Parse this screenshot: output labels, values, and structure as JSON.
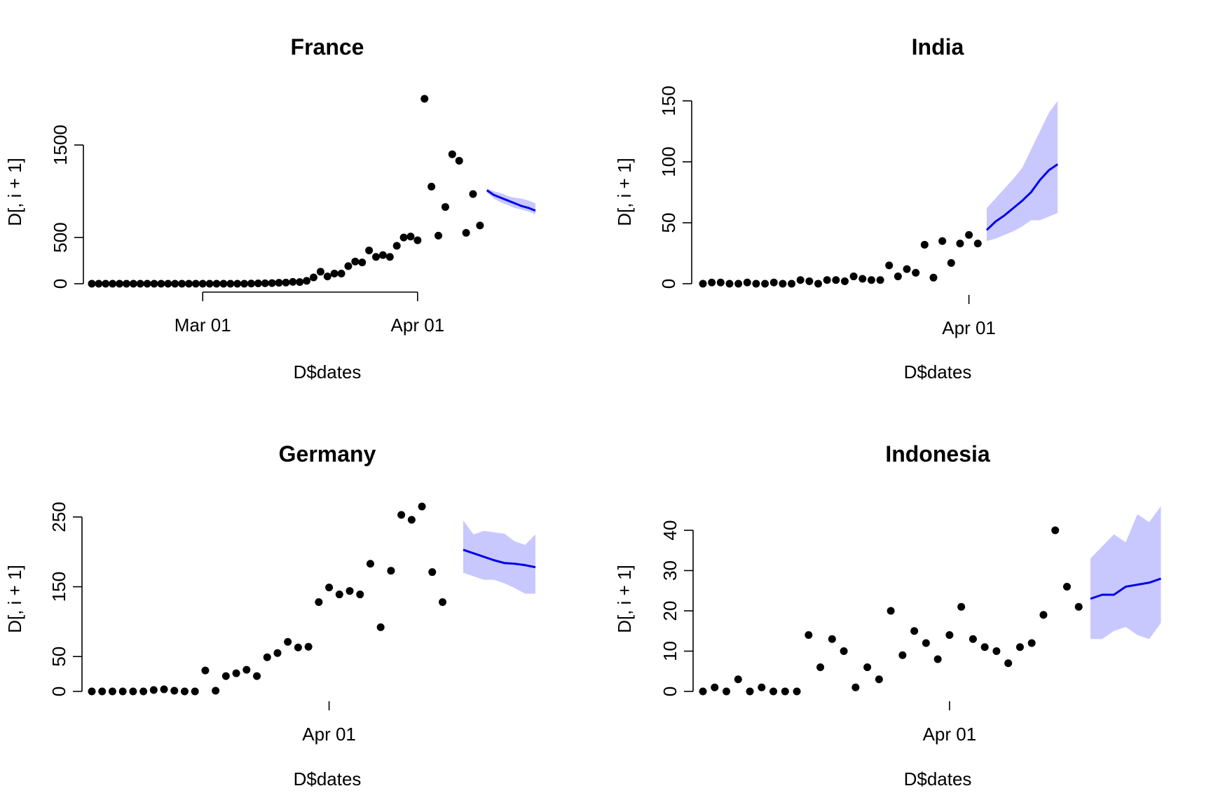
{
  "chart_data": [
    {
      "type": "scatter",
      "title": "France",
      "xlabel": "D$dates",
      "ylabel": "D[, i + 1]",
      "x_start": "2020-02-14",
      "x_ticks": [
        {
          "date": "2020-03-01",
          "label": "Mar 01"
        },
        {
          "date": "2020-04-01",
          "label": "Apr 01"
        }
      ],
      "xlim": [
        "2020-02-14",
        "2020-04-18"
      ],
      "ylim": [
        0,
        2000
      ],
      "y_ticks": [
        0,
        500,
        1500
      ],
      "observed": [
        0,
        0,
        0,
        0,
        0,
        0,
        0,
        0,
        0,
        0,
        0,
        0,
        0,
        0,
        0,
        0,
        0,
        0,
        0,
        0,
        0,
        0,
        0,
        2,
        4,
        5,
        7,
        10,
        12,
        20,
        18,
        31,
        68,
        130,
        79,
        110,
        110,
        190,
        240,
        230,
        360,
        290,
        310,
        290,
        410,
        500,
        510,
        470,
        2000,
        1050,
        520,
        830,
        1400,
        1330,
        550,
        970,
        630
      ],
      "forecast": {
        "x_start": "2020-04-11",
        "mean": [
          1010,
          960,
          930,
          900,
          870,
          840,
          820,
          790
        ],
        "lower": [
          990,
          920,
          880,
          850,
          820,
          800,
          780,
          750
        ],
        "upper": [
          1030,
          1000,
          980,
          950,
          930,
          920,
          900,
          870
        ]
      },
      "colors": {
        "points": "#000000",
        "line": "#0000ee",
        "band": "#c8c8ff"
      }
    },
    {
      "type": "scatter",
      "title": "India",
      "xlabel": "D$dates",
      "ylabel": "D[, i + 1]",
      "x_start": "2020-03-02",
      "x_ticks": [
        {
          "date": "2020-04-01",
          "label": "Apr 01"
        }
      ],
      "xlim": [
        "2020-03-02",
        "2020-04-20"
      ],
      "ylim": [
        0,
        150
      ],
      "y_ticks": [
        0,
        50,
        100,
        150
      ],
      "observed": [
        0,
        1,
        1,
        0,
        0,
        1,
        0,
        0,
        1,
        0,
        0,
        3,
        2,
        0,
        3,
        3,
        2,
        6,
        4,
        3,
        3,
        15,
        6,
        12,
        9,
        32,
        5,
        35,
        17,
        33,
        40,
        33
      ],
      "forecast": {
        "x_start": "2020-04-03",
        "mean": [
          44,
          51,
          56,
          62,
          68,
          75,
          85,
          93,
          98
        ],
        "lower": [
          35,
          37,
          40,
          43,
          47,
          52,
          52,
          55,
          58
        ],
        "upper": [
          62,
          70,
          78,
          86,
          95,
          110,
          125,
          140,
          150
        ]
      },
      "colors": {
        "points": "#000000",
        "line": "#0000ee",
        "band": "#c8c8ff"
      }
    },
    {
      "type": "scatter",
      "title": "Germany",
      "xlabel": "D$dates",
      "ylabel": "D[, i + 1]",
      "x_start": "2020-03-09",
      "x_ticks": [
        {
          "date": "2020-04-01",
          "label": "Apr 01"
        }
      ],
      "xlim": [
        "2020-03-09",
        "2020-04-21"
      ],
      "ylim": [
        0,
        250
      ],
      "y_ticks": [
        0,
        50,
        150,
        250
      ],
      "observed": [
        0,
        0,
        0,
        0,
        0,
        0,
        2,
        3,
        1,
        0,
        0,
        30,
        1,
        22,
        26,
        31,
        22,
        49,
        55,
        71,
        63,
        64,
        128,
        149,
        139,
        144,
        139,
        183,
        92,
        173,
        253,
        246,
        265,
        171,
        128
      ],
      "forecast": {
        "x_start": "2020-04-14",
        "mean": [
          203,
          198,
          193,
          188,
          184,
          183,
          181,
          178
        ],
        "lower": [
          170,
          165,
          160,
          160,
          155,
          148,
          140,
          140
        ],
        "upper": [
          245,
          225,
          230,
          228,
          226,
          215,
          210,
          225
        ]
      },
      "colors": {
        "points": "#000000",
        "line": "#0000ee",
        "band": "#c8c8ff"
      }
    },
    {
      "type": "scatter",
      "title": "Indonesia",
      "xlabel": "D$dates",
      "ylabel": "D[, i + 1]",
      "x_start": "2020-03-11",
      "x_ticks": [
        {
          "date": "2020-04-01",
          "label": "Apr 01"
        }
      ],
      "xlim": [
        "2020-03-11",
        "2020-04-17"
      ],
      "ylim": [
        0,
        40
      ],
      "y_ticks": [
        0,
        10,
        20,
        30,
        40
      ],
      "observed": [
        0,
        1,
        0,
        3,
        0,
        1,
        0,
        0,
        0,
        14,
        6,
        13,
        10,
        1,
        6,
        3,
        20,
        9,
        15,
        12,
        8,
        14,
        21,
        13,
        11,
        10,
        7,
        11,
        12,
        19,
        40,
        26,
        21
      ],
      "forecast": {
        "x_start": "2020-04-13",
        "mean": [
          23,
          24,
          24,
          26,
          26.5,
          27,
          28
        ],
        "lower": [
          13,
          13,
          15,
          16,
          14,
          13,
          17
        ],
        "upper": [
          33,
          36,
          39,
          37,
          44,
          42,
          46
        ]
      },
      "colors": {
        "points": "#000000",
        "line": "#0000ee",
        "band": "#c8c8ff"
      }
    }
  ]
}
